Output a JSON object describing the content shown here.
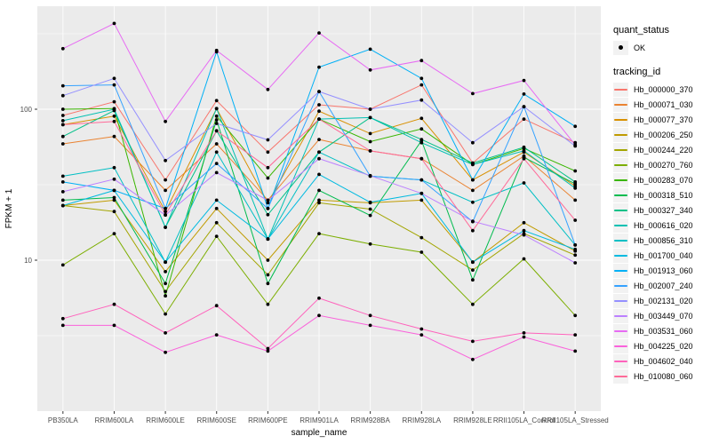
{
  "figure": {
    "panel_bg": "#EBEBEB",
    "grid_color": "#FFFFFF",
    "axis_text_color": "#4D4D4D",
    "point_color": "#000000"
  },
  "legend": {
    "quant_status": {
      "title": "quant_status",
      "items": [
        {
          "label": "OK",
          "marker": "point-icon"
        }
      ]
    },
    "tracking_id": {
      "title": "tracking_id",
      "items": [
        {
          "label": "Hb_000000_370",
          "color": "#F8766D"
        },
        {
          "label": "Hb_000071_030",
          "color": "#EA8331"
        },
        {
          "label": "Hb_000077_370",
          "color": "#D89000"
        },
        {
          "label": "Hb_000206_250",
          "color": "#C09B00"
        },
        {
          "label": "Hb_000244_220",
          "color": "#A3A500"
        },
        {
          "label": "Hb_000270_760",
          "color": "#7CAE00"
        },
        {
          "label": "Hb_000283_070",
          "color": "#39B600"
        },
        {
          "label": "Hb_000318_510",
          "color": "#00BB4E"
        },
        {
          "label": "Hb_000327_340",
          "color": "#00C087"
        },
        {
          "label": "Hb_000616_020",
          "color": "#00C0B2"
        },
        {
          "label": "Hb_000856_310",
          "color": "#00BFC4"
        },
        {
          "label": "Hb_001700_040",
          "color": "#00BAE0"
        },
        {
          "label": "Hb_001913_060",
          "color": "#00B0F6"
        },
        {
          "label": "Hb_002007_240",
          "color": "#35A2FF"
        },
        {
          "label": "Hb_002131_020",
          "color": "#9590FF"
        },
        {
          "label": "Hb_003449_070",
          "color": "#BC80FF"
        },
        {
          "label": "Hb_003531_060",
          "color": "#E76BF3"
        },
        {
          "label": "Hb_004225_020",
          "color": "#FA62DB"
        },
        {
          "label": "Hb_004602_040",
          "color": "#FF62BC"
        },
        {
          "label": "Hb_010080_060",
          "color": "#FF6A98"
        }
      ]
    }
  },
  "chart_data": {
    "type": "line",
    "title": "",
    "xlabel": "sample_name",
    "ylabel": "FPKM + 1",
    "y_scale": "log10",
    "y_ticks": [
      10,
      100
    ],
    "ylim": [
      1,
      480
    ],
    "grid": true,
    "legend_position": "right",
    "categories": [
      "PB350LA",
      "RRIM600LA",
      "RRIM600LE",
      "RRIM600SE",
      "RRIM600PE",
      "RRIM901LA",
      "RRIM928BA",
      "RRIM928LA",
      "RRIM928LE",
      "RRII105LA_Control",
      "RRII105LA_Stressed"
    ],
    "series": [
      {
        "name": "Hb_000000_370",
        "color": "#F8766D",
        "values": [
          91,
          112,
          34,
          114,
          52,
          107,
          100,
          145,
          44,
          86,
          60
        ]
      },
      {
        "name": "Hb_000071_030",
        "color": "#EA8331",
        "values": [
          59,
          66,
          29,
          59,
          25,
          63,
          53,
          47,
          29,
          49,
          25
        ]
      },
      {
        "name": "Hb_000077_370",
        "color": "#D89000",
        "values": [
          79,
          90,
          21,
          101,
          24,
          97,
          69,
          87,
          34,
          52,
          31
        ]
      },
      {
        "name": "Hb_000206_250",
        "color": "#C09B00",
        "values": [
          23,
          25,
          8.4,
          22,
          10,
          25,
          24,
          25,
          9.7,
          17.7,
          11.5
        ]
      },
      {
        "name": "Hb_000244_220",
        "color": "#A3A500",
        "values": [
          23,
          21,
          6.2,
          17.7,
          8,
          24,
          21.8,
          14.1,
          8.6,
          15,
          10.8
        ]
      },
      {
        "name": "Hb_000270_760",
        "color": "#7CAE00",
        "values": [
          9.3,
          15,
          4.4,
          14.4,
          5.1,
          15,
          12.8,
          11.3,
          5.1,
          10.2,
          4.3
        ]
      },
      {
        "name": "Hb_000283_070",
        "color": "#39B600",
        "values": [
          100,
          101,
          5.8,
          90,
          35,
          86,
          61,
          74,
          43,
          55,
          39
        ]
      },
      {
        "name": "Hb_000318_510",
        "color": "#00BB4E",
        "values": [
          25,
          26,
          7,
          85,
          7,
          29,
          19.8,
          62,
          7.4,
          48,
          32
        ]
      },
      {
        "name": "Hb_000327_340",
        "color": "#00C087",
        "values": [
          66,
          98,
          16.5,
          72,
          20,
          52,
          88,
          63,
          44,
          56,
          33
        ]
      },
      {
        "name": "Hb_000616_020",
        "color": "#00C0B2",
        "values": [
          84,
          100,
          16.5,
          101,
          13.8,
          86,
          88,
          60,
          43,
          53,
          30
        ]
      },
      {
        "name": "Hb_000856_310",
        "color": "#00BFC4",
        "values": [
          36,
          41,
          9.7,
          52,
          13.8,
          52,
          36,
          34,
          24.2,
          32.5,
          12.6
        ]
      },
      {
        "name": "Hb_001700_040",
        "color": "#00BAE0",
        "values": [
          23,
          29,
          9.7,
          25,
          13.8,
          37,
          24.2,
          27.7,
          9.7,
          15.7,
          11.8
        ]
      },
      {
        "name": "Hb_001913_060",
        "color": "#00B0F6",
        "values": [
          33,
          29,
          22,
          240,
          22,
          190,
          250,
          160,
          34,
          126,
          77
        ]
      },
      {
        "name": "Hb_002007_240",
        "color": "#35A2FF",
        "values": [
          143,
          145,
          22,
          43.7,
          22,
          131,
          36,
          34,
          18,
          104,
          12.6
        ]
      },
      {
        "name": "Hb_002131_020",
        "color": "#9590FF",
        "values": [
          123,
          160,
          45.7,
          80.5,
          62.7,
          131,
          100,
          115,
          60,
          104,
          57
        ]
      },
      {
        "name": "Hb_003449_070",
        "color": "#BC80FF",
        "values": [
          28.4,
          34.4,
          19.9,
          38,
          24.9,
          47,
          36.3,
          27.7,
          18.1,
          14.7,
          9.6
        ]
      },
      {
        "name": "Hb_003531_060",
        "color": "#E76BF3",
        "values": [
          252,
          370,
          83,
          245,
          135,
          320,
          182,
          210,
          127,
          155,
          58
        ]
      },
      {
        "name": "Hb_004225_020",
        "color": "#FA62DB",
        "values": [
          3.7,
          3.7,
          2.45,
          3.2,
          2.5,
          4.3,
          3.7,
          3.2,
          2.2,
          3.1,
          2.5
        ]
      },
      {
        "name": "Hb_004602_040",
        "color": "#FF62BC",
        "values": [
          4.1,
          5.1,
          3.3,
          5,
          2.6,
          5.6,
          4.3,
          3.5,
          2.9,
          3.3,
          3.2
        ]
      },
      {
        "name": "Hb_010080_060",
        "color": "#FF6A98",
        "values": [
          79,
          83,
          20,
          72,
          41,
          86,
          53,
          47,
          15.7,
          47,
          18.4
        ]
      }
    ]
  }
}
